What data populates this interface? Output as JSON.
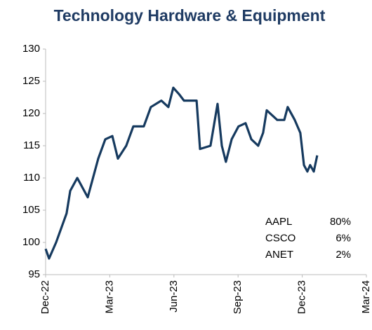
{
  "chart_data": {
    "type": "line",
    "title": "Technology Hardware & Equipment",
    "x": [
      0,
      0.16,
      0.49,
      0.98,
      1.15,
      1.48,
      1.97,
      2.46,
      2.79,
      3.12,
      3.38,
      3.77,
      4.1,
      4.59,
      4.92,
      5.41,
      5.74,
      5.97,
      6.24,
      6.47,
      6.89,
      7.06,
      7.22,
      7.71,
      8.04,
      8.24,
      8.43,
      8.7,
      9.02,
      9.35,
      9.62,
      9.94,
      10.17,
      10.34,
      10.83,
      11.16,
      11.32,
      11.65,
      11.91,
      12.08,
      12.24,
      12.37,
      12.54,
      12.7
    ],
    "series": [
      {
        "color": "#163a5f",
        "values": [
          99,
          97.5,
          100,
          104.5,
          108,
          110,
          107,
          113,
          116,
          116.5,
          113,
          115,
          118,
          118,
          121,
          122,
          121,
          124,
          123,
          122,
          122,
          122,
          114.5,
          115,
          121.5,
          115,
          112.5,
          116,
          118,
          118.5,
          116,
          115,
          117,
          120.5,
          119,
          119,
          121,
          119,
          117,
          112,
          111,
          112,
          111,
          113.5
        ]
      }
    ],
    "xlim": [
      0,
      15
    ],
    "xticks": [
      {
        "value": 0,
        "label": "Dec-22"
      },
      {
        "value": 3,
        "label": "Mar-23"
      },
      {
        "value": 6,
        "label": "Jun-23"
      },
      {
        "value": 9,
        "label": "Sep-23"
      },
      {
        "value": 12,
        "label": "Dec-23"
      },
      {
        "value": 15,
        "label": "Mar-24"
      }
    ],
    "ylim": [
      95,
      130
    ],
    "yticks": [
      95,
      100,
      105,
      110,
      115,
      120,
      125,
      130
    ],
    "weights": [
      {
        "name": "AAPL",
        "value": "80%"
      },
      {
        "name": "CSCO",
        "value": "6%"
      },
      {
        "name": "ANET",
        "value": "2%"
      }
    ]
  }
}
